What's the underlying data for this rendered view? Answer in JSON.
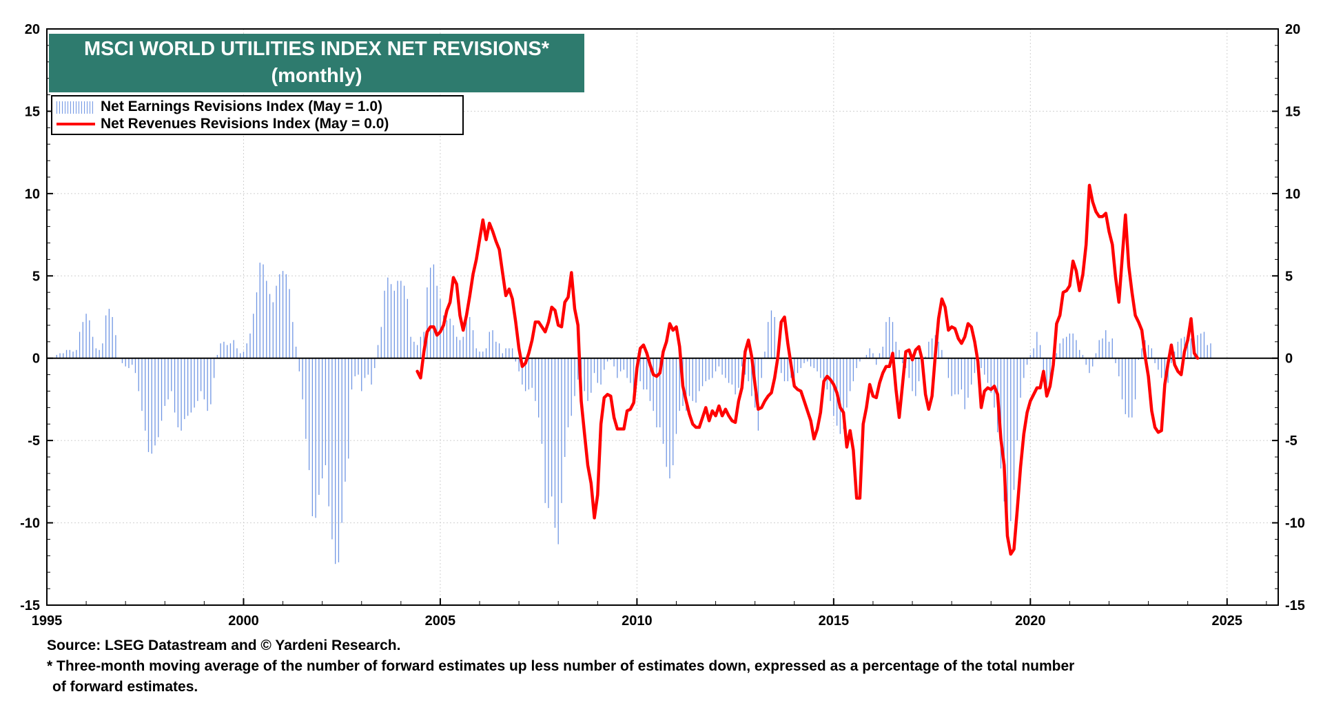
{
  "header": {
    "title_line1": "MSCI WORLD UTILITIES INDEX NET REVISIONS*",
    "title_line2": "(monthly)"
  },
  "legend": {
    "earnings_label": "Net Earnings Revisions Index (May  = 1.0)",
    "revenues_label": "Net Revenues Revisions Index (May  = 0.0)"
  },
  "footer": {
    "source": "Source: LSEG Datastream and © Yardeni Research.",
    "note_line1": "* Three-month moving average of the number of forward estimates up less number of estimates down, expressed as a percentage of the total number",
    "note_line2": "of forward estimates."
  },
  "colors": {
    "earnings_bars": "#6f95e3",
    "revenues_line": "#ff0000",
    "title_bg": "#2e7b6e"
  },
  "chart_data": {
    "type": "bar+line",
    "title": "MSCI WORLD UTILITIES INDEX NET REVISIONS* (monthly)",
    "xlim": [
      1995,
      2026.3
    ],
    "ylim": [
      -15,
      20
    ],
    "x_ticks": [
      "1995",
      "2000",
      "2005",
      "2010",
      "2015",
      "2020",
      "2025"
    ],
    "y_ticks": [
      "-15",
      "-10",
      "-5",
      "0",
      "5",
      "10",
      "15",
      "20"
    ],
    "grid": true,
    "series": [
      {
        "name": "Net Earnings Revisions Index (May  = 1.0)",
        "style": "bars",
        "start": 1995.25,
        "step": 0.0833333,
        "values": [
          0.2,
          0.3,
          0.3,
          0.5,
          0.5,
          0.4,
          0.5,
          1.6,
          2.2,
          2.7,
          2.3,
          1.3,
          0.6,
          0.5,
          0.9,
          2.6,
          3.0,
          2.5,
          1.4,
          0.0,
          -0.3,
          -0.5,
          -0.6,
          -0.4,
          -0.9,
          -2.0,
          -3.2,
          -4.4,
          -5.7,
          -5.8,
          -5.3,
          -4.8,
          -3.8,
          -2.9,
          -2.5,
          -2.0,
          -3.3,
          -4.2,
          -4.4,
          -3.7,
          -3.5,
          -3.3,
          -3.0,
          -2.6,
          -2.0,
          -2.5,
          -3.2,
          -2.8,
          -1.2,
          0.2,
          0.9,
          1.0,
          0.8,
          0.9,
          1.1,
          0.6,
          0.3,
          0.4,
          0.9,
          1.5,
          2.7,
          4.0,
          5.8,
          5.7,
          4.7,
          3.9,
          3.4,
          4.4,
          5.1,
          5.3,
          5.1,
          4.2,
          2.2,
          0.7,
          -0.8,
          -2.5,
          -4.9,
          -6.8,
          -9.6,
          -9.7,
          -8.3,
          -7.3,
          -6.5,
          -9.0,
          -11.0,
          -12.5,
          -12.4,
          -10.0,
          -7.5,
          -6.1,
          -1.9,
          -1.1,
          -1.0,
          -2.0,
          -1.2,
          -1.0,
          -1.6,
          -0.6,
          0.8,
          1.9,
          4.1,
          4.9,
          4.5,
          4.1,
          4.7,
          4.7,
          4.4,
          3.6,
          1.3,
          1.0,
          0.8,
          1.3,
          1.6,
          4.3,
          5.5,
          5.7,
          4.4,
          3.6,
          2.6,
          2.3,
          2.4,
          2.0,
          1.3,
          1.1,
          1.3,
          2.5,
          2.5,
          1.7,
          0.6,
          0.4,
          0.4,
          0.6,
          1.6,
          1.7,
          1.0,
          0.9,
          0.3,
          0.6,
          0.6,
          0.6,
          -0.2,
          -0.8,
          -1.6,
          -2.0,
          -1.9,
          -1.8,
          -2.6,
          -3.6,
          -5.2,
          -8.8,
          -9.1,
          -8.4,
          -10.3,
          -11.3,
          -8.8,
          -6.0,
          -4.2,
          -3.5,
          -2.3,
          -1.3,
          -1.0,
          -2.0,
          -2.6,
          -2.1,
          -0.9,
          -1.5,
          -1.6,
          -0.7,
          -0.2,
          -0.1,
          -0.5,
          -1.2,
          -0.8,
          -0.7,
          -1.2,
          -1.5,
          -2.3,
          -1.3,
          -1.4,
          -1.9,
          -1.9,
          -2.6,
          -3.2,
          -4.2,
          -4.2,
          -5.2,
          -6.6,
          -7.3,
          -6.5,
          -4.6,
          -3.2,
          -2.9,
          -3.2,
          -2.3,
          -2.6,
          -2.7,
          -2.0,
          -1.7,
          -1.4,
          -1.3,
          -1.2,
          -0.8,
          -0.5,
          -1.0,
          -1.2,
          -1.5,
          -1.6,
          -2.2,
          -1.8,
          -0.5,
          -1.0,
          -1.4,
          -2.3,
          -3.0,
          -4.4,
          -1.2,
          0.4,
          2.2,
          2.9,
          2.5,
          0.3,
          -0.9,
          -1.4,
          -1.4,
          -1.2,
          -1.4,
          -0.9,
          -0.6,
          -0.3,
          -0.2,
          -0.5,
          -0.6,
          -0.8,
          -1.2,
          -1.4,
          -1.9,
          -2.6,
          -3.5,
          -4.1,
          -4.6,
          -4.3,
          -3.0,
          -2.0,
          -1.4,
          -0.6,
          -0.2,
          0.0,
          0.2,
          0.6,
          0.3,
          -0.4,
          0.3,
          0.7,
          2.2,
          2.5,
          2.2,
          1.0,
          0.5,
          -0.3,
          -0.6,
          -1.2,
          -2.0,
          -2.3,
          -1.4,
          -0.6,
          0.1,
          1.0,
          1.2,
          1.4,
          1.0,
          0.5,
          0.0,
          -1.2,
          -2.3,
          -2.2,
          -2.2,
          -1.9,
          -3.1,
          -2.4,
          -1.6,
          -0.9,
          -0.5,
          -0.6,
          -1.0,
          -1.5,
          -2.1,
          -3.0,
          -4.5,
          -6.7,
          -8.7,
          -9.8,
          -9.9,
          -8.0,
          -5.0,
          -2.4,
          -1.2,
          -0.4,
          0.2,
          0.6,
          1.6,
          0.8,
          -1.4,
          -2.2,
          -1.2,
          0.1,
          0.3,
          0.9,
          1.2,
          1.3,
          1.5,
          1.5,
          1.1,
          0.5,
          0.2,
          -0.4,
          -0.9,
          -0.5,
          0.3,
          1.1,
          1.2,
          1.7,
          1.0,
          1.2,
          -0.3,
          -1.1,
          -2.5,
          -3.4,
          -3.6,
          -3.6,
          -2.5,
          -0.1,
          0.6,
          1.1,
          0.8,
          0.6,
          -0.3,
          -0.7,
          -1.2,
          -2.1,
          -1.5,
          -0.3,
          0.4,
          1.0,
          1.2,
          1.3,
          0.9,
          1.2,
          0.9,
          1.4,
          1.5,
          1.6,
          0.8,
          0.9
        ]
      },
      {
        "name": "Net Revenues Revisions Index (May  = 0.0)",
        "style": "line",
        "start": 2004.417,
        "step": 0.0833333,
        "values": [
          -0.8,
          -1.2,
          0.4,
          1.6,
          1.9,
          1.9,
          1.4,
          1.6,
          2.0,
          2.9,
          3.4,
          4.9,
          4.5,
          2.6,
          1.7,
          2.6,
          3.8,
          5.1,
          6.0,
          7.2,
          8.4,
          7.2,
          8.2,
          7.7,
          7.1,
          6.6,
          5.2,
          3.8,
          4.2,
          3.6,
          2.2,
          0.6,
          -0.5,
          -0.3,
          0.3,
          1.1,
          2.2,
          2.2,
          1.9,
          1.6,
          2.2,
          3.1,
          2.9,
          2.0,
          1.9,
          3.4,
          3.7,
          5.2,
          3.0,
          2.0,
          -2.6,
          -4.6,
          -6.5,
          -7.6,
          -9.7,
          -8.3,
          -4.0,
          -2.4,
          -2.2,
          -2.3,
          -3.6,
          -4.3,
          -4.3,
          -4.3,
          -3.2,
          -3.1,
          -2.7,
          -0.6,
          0.6,
          0.8,
          0.3,
          -0.4,
          -1.0,
          -1.1,
          -0.9,
          0.4,
          1.0,
          2.1,
          1.7,
          1.9,
          0.7,
          -1.7,
          -2.6,
          -3.4,
          -4.0,
          -4.2,
          -4.2,
          -3.6,
          -3.0,
          -3.8,
          -3.2,
          -3.5,
          -2.9,
          -3.5,
          -3.1,
          -3.5,
          -3.8,
          -3.9,
          -2.6,
          -1.8,
          0.4,
          1.1,
          0.1,
          -1.6,
          -3.1,
          -3.0,
          -2.6,
          -2.3,
          -2.1,
          -1.2,
          0.1,
          2.2,
          2.5,
          0.9,
          -0.4,
          -1.7,
          -1.9,
          -2.0,
          -2.6,
          -3.2,
          -3.8,
          -4.9,
          -4.3,
          -3.3,
          -1.4,
          -1.1,
          -1.3,
          -1.6,
          -2.1,
          -3.0,
          -3.3,
          -5.4,
          -4.4,
          -5.6,
          -8.5,
          -8.5,
          -4.0,
          -3.0,
          -1.6,
          -2.3,
          -2.4,
          -1.5,
          -0.9,
          -0.5,
          -0.5,
          0.3,
          -1.9,
          -3.6,
          -1.6,
          0.4,
          0.5,
          -0.1,
          0.5,
          0.7,
          -0.1,
          -2.2,
          -3.1,
          -2.3,
          0.2,
          2.4,
          3.6,
          3.1,
          1.7,
          1.9,
          1.8,
          1.2,
          0.9,
          1.3,
          2.1,
          1.9,
          1.0,
          -0.2,
          -3.0,
          -2.0,
          -1.8,
          -1.9,
          -1.7,
          -2.2,
          -4.9,
          -6.5,
          -10.8,
          -11.9,
          -11.6,
          -9.2,
          -6.6,
          -4.6,
          -3.3,
          -2.6,
          -2.2,
          -1.8,
          -1.8,
          -0.8,
          -2.3,
          -1.7,
          -0.4,
          2.1,
          2.6,
          4.0,
          4.1,
          4.4,
          5.9,
          5.3,
          4.1,
          5.1,
          6.9,
          10.5,
          9.5,
          8.9,
          8.6,
          8.6,
          8.8,
          7.7,
          6.9,
          4.9,
          3.4,
          6.1,
          8.7,
          5.6,
          4.0,
          2.6,
          2.2,
          1.7,
          0.1,
          -1.1,
          -3.2,
          -4.2,
          -4.5,
          -4.4,
          -1.6,
          -0.3,
          0.8,
          -0.4,
          -0.8,
          -1.0,
          0.4,
          1.1,
          2.4,
          0.3,
          0.0
        ]
      }
    ]
  }
}
